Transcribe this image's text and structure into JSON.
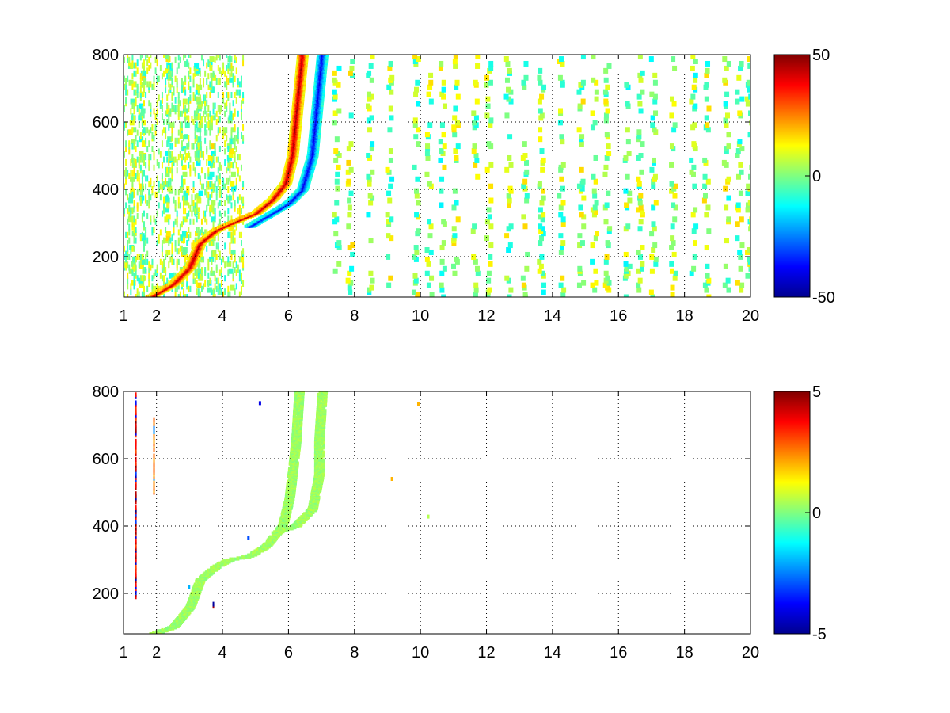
{
  "chart_data": [
    {
      "type": "heatmap",
      "title": "",
      "xlabel": "",
      "ylabel": "",
      "xlim": [
        1,
        20
      ],
      "ylim": [
        80,
        800
      ],
      "xticks": [
        1,
        2,
        4,
        6,
        8,
        10,
        12,
        14,
        16,
        18,
        20
      ],
      "xtick_labels": [
        "1",
        "2",
        "4",
        "6",
        "8",
        "10",
        "12",
        "14",
        "16",
        "18",
        "20"
      ],
      "yticks": [
        200,
        400,
        600,
        800
      ],
      "ytick_labels": [
        "200",
        "400",
        "600",
        "800"
      ],
      "grid": true,
      "colormap": "jet",
      "colorbar": {
        "range": [
          -50,
          50
        ],
        "ticks": [
          50,
          0,
          -50
        ],
        "tick_labels": [
          "50",
          "0",
          "-50"
        ]
      },
      "background": "#ffffff",
      "features": {
        "positive_ridge": [
          [
            1.8,
            80
          ],
          [
            2.5,
            120
          ],
          [
            3.0,
            170
          ],
          [
            3.3,
            240
          ],
          [
            3.8,
            280
          ],
          [
            4.5,
            310
          ],
          [
            5.0,
            330
          ],
          [
            5.5,
            370
          ],
          [
            5.9,
            420
          ],
          [
            6.1,
            500
          ],
          [
            6.2,
            600
          ],
          [
            6.3,
            700
          ],
          [
            6.4,
            800
          ]
        ],
        "negative_ridge": [
          [
            4.8,
            290
          ],
          [
            5.5,
            330
          ],
          [
            6.0,
            360
          ],
          [
            6.4,
            400
          ],
          [
            6.7,
            500
          ],
          [
            6.8,
            600
          ],
          [
            6.9,
            700
          ],
          [
            7.0,
            800
          ]
        ],
        "noise_columns_x": [
          1.2,
          1.5,
          2.3,
          2.8,
          3.2,
          3.6,
          4.2,
          7.4,
          7.8,
          8.4,
          9.0,
          9.8,
          10.2,
          10.6,
          11.0,
          11.6,
          12.0,
          12.6,
          13.1,
          13.6,
          14.2,
          14.8,
          15.2,
          15.6,
          16.2,
          16.6,
          17.0,
          17.6,
          18.2,
          18.6,
          19.2,
          19.6,
          19.9
        ]
      }
    },
    {
      "type": "heatmap",
      "title": "",
      "xlabel": "",
      "ylabel": "",
      "xlim": [
        1,
        20
      ],
      "ylim": [
        80,
        800
      ],
      "xticks": [
        1,
        2,
        4,
        6,
        8,
        10,
        12,
        14,
        16,
        18,
        20
      ],
      "xtick_labels": [
        "1",
        "2",
        "4",
        "6",
        "8",
        "10",
        "12",
        "14",
        "16",
        "18",
        "20"
      ],
      "yticks": [
        200,
        400,
        600,
        800
      ],
      "ytick_labels": [
        "200",
        "400",
        "600",
        "800"
      ],
      "grid": true,
      "colormap": "jet",
      "colorbar": {
        "range": [
          -5,
          5
        ],
        "ticks": [
          5,
          0,
          -5
        ],
        "tick_labels": [
          "5",
          "0",
          "-5"
        ]
      },
      "background": "#ffffff",
      "features": {
        "green_band": [
          [
            1.9,
            80
          ],
          [
            2.5,
            100
          ],
          [
            3.0,
            160
          ],
          [
            3.3,
            240
          ],
          [
            3.8,
            280
          ],
          [
            4.2,
            300
          ],
          [
            4.8,
            310
          ],
          [
            5.3,
            340
          ],
          [
            5.8,
            400
          ],
          [
            6.0,
            480
          ],
          [
            6.1,
            560
          ],
          [
            6.2,
            650
          ],
          [
            6.3,
            800
          ]
        ],
        "green_band_right": [
          [
            5.6,
            380
          ],
          [
            6.2,
            400
          ],
          [
            6.7,
            450
          ],
          [
            6.9,
            550
          ],
          [
            6.9,
            650
          ],
          [
            7.0,
            800
          ]
        ],
        "spikes": [
          {
            "x": 1.35,
            "y0": 190,
            "y1": 790,
            "value": 5
          },
          {
            "x": 1.9,
            "y0": 500,
            "y1": 720,
            "value": 3
          },
          {
            "x": 3.7,
            "y0": 150,
            "y1": 170,
            "value": -5
          }
        ],
        "specks": [
          {
            "x": 5.1,
            "y": 765,
            "value": -4
          },
          {
            "x": 9.9,
            "y": 762,
            "value": 2
          },
          {
            "x": 9.1,
            "y": 540,
            "value": 2
          },
          {
            "x": 10.2,
            "y": 428,
            "value": 0.5
          },
          {
            "x": 4.75,
            "y": 365,
            "value": -3
          },
          {
            "x": 2.95,
            "y": 220,
            "value": -2
          }
        ]
      }
    }
  ]
}
